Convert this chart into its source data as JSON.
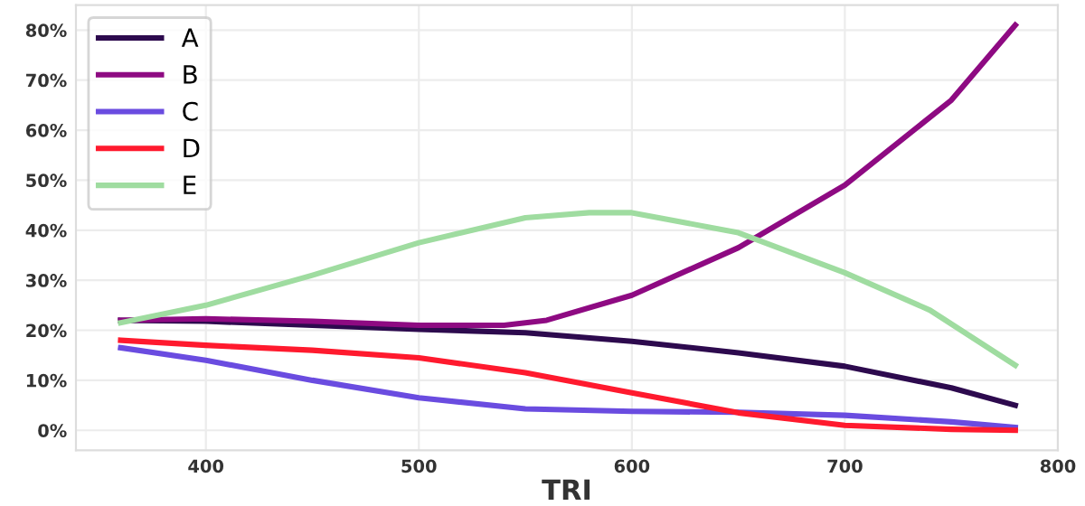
{
  "chart_data": {
    "type": "line",
    "xlabel": "TRI",
    "x": [
      360,
      400,
      450,
      500,
      550,
      600,
      650,
      700,
      750,
      780
    ],
    "series": [
      {
        "name": "A",
        "color": "#2d0a4e",
        "values": [
          22,
          21.8,
          21,
          20.2,
          19.5,
          17.8,
          15.5,
          12.8,
          8.5,
          5
        ]
      },
      {
        "name": "B",
        "color": "#8e0a82",
        "x": [
          360,
          400,
          450,
          500,
          540,
          560,
          600,
          650,
          700,
          750,
          780
        ],
        "values": [
          22,
          22.3,
          21.8,
          21,
          21,
          22,
          27,
          36.5,
          49,
          66,
          81
        ]
      },
      {
        "name": "C",
        "color": "#6a4ce0",
        "values": [
          16.5,
          14,
          10,
          6.5,
          4.3,
          3.8,
          3.6,
          3,
          1.7,
          0.6
        ]
      },
      {
        "name": "D",
        "color": "#ff1a2e",
        "values": [
          18,
          17,
          16,
          14.5,
          11.5,
          7.5,
          3.5,
          1,
          0.2,
          0
        ]
      },
      {
        "name": "E",
        "color": "#9fdca0",
        "x": [
          360,
          400,
          450,
          500,
          550,
          580,
          600,
          650,
          700,
          740,
          780
        ],
        "values": [
          21.5,
          25,
          31,
          37.5,
          42.5,
          43.5,
          43.5,
          39.5,
          31.5,
          24,
          13
        ]
      }
    ],
    "xlim": [
      339,
      800
    ],
    "xticks": [
      400,
      500,
      600,
      700,
      800
    ],
    "ylim": [
      -4,
      85
    ],
    "yticks": [
      {
        "value": 0,
        "label": "0%"
      },
      {
        "value": 10,
        "label": "10%"
      },
      {
        "value": 20,
        "label": "20%"
      },
      {
        "value": 30,
        "label": "30%"
      },
      {
        "value": 40,
        "label": "40%"
      },
      {
        "value": 50,
        "label": "50%"
      },
      {
        "value": 60,
        "label": "60%"
      },
      {
        "value": 70,
        "label": "70%"
      },
      {
        "value": 80,
        "label": "80%"
      }
    ],
    "grid": true,
    "legend": "top left",
    "marker": "none",
    "line_style": "solid"
  }
}
